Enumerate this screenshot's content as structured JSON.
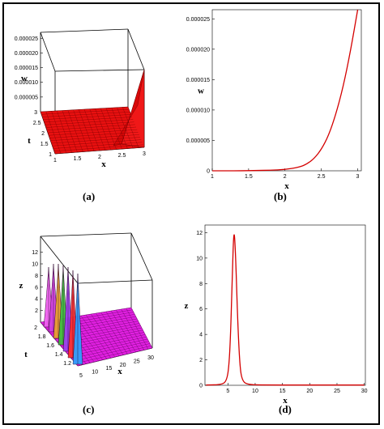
{
  "captions": {
    "a": "(a)",
    "b": "(b)",
    "c": "(c)",
    "d": "(d)"
  },
  "colors": {
    "curve": "#d40000",
    "surface_a": "#e81010",
    "surface_c": "#e020e0",
    "frame": "#000000"
  },
  "chart_data": [
    {
      "id": "a",
      "type": "surface3d",
      "caption": "(a)",
      "xlabel": "x",
      "ylabel": "t",
      "zlabel": "w",
      "x_ticks": [
        "1",
        "1.5",
        "2",
        "2.5",
        "3"
      ],
      "t_ticks": [
        "1",
        "1.5",
        "2",
        "2.5",
        "3"
      ],
      "z_ticks": [
        "0.000005",
        "0.000010",
        "0.000015",
        "0.000020",
        "0.000025"
      ],
      "xlim": [
        1,
        3
      ],
      "tlim": [
        1,
        3
      ],
      "zlim": [
        0,
        2.7e-05
      ]
    },
    {
      "id": "b",
      "type": "line",
      "caption": "(b)",
      "xlabel": "x",
      "ylabel": "w",
      "x_ticks": [
        "1",
        "1.5",
        "2",
        "2.5",
        "3"
      ],
      "y_ticks": [
        "0",
        "0.000005",
        "0.000010",
        "0.000015",
        "0.000020",
        "0.000025"
      ],
      "xlim": [
        1,
        3.05
      ],
      "ylim": [
        0,
        2.65e-05
      ],
      "x": [
        1.0,
        1.2,
        1.4,
        1.6,
        1.8,
        2.0,
        2.2,
        2.3,
        2.4,
        2.5,
        2.6,
        2.7,
        2.8,
        2.9,
        3.0
      ],
      "y": [
        0.0,
        0.0,
        0.0,
        5e-08,
        1e-07,
        2e-07,
        6e-07,
        1.1e-06,
        2e-06,
        3.5e-06,
        5.8e-06,
        9.3e-06,
        1.38e-05,
        1.96e-05,
        2.65e-05
      ]
    },
    {
      "id": "c",
      "type": "surface3d",
      "caption": "(c)",
      "xlabel": "x",
      "ylabel": "t",
      "zlabel": "z",
      "x_ticks": [
        "5",
        "10",
        "15",
        "20",
        "25",
        "30"
      ],
      "t_ticks": [
        "1.2",
        "1.4",
        "1.6",
        "1.8",
        "2"
      ],
      "z_ticks": [
        "2",
        "4",
        "6",
        "8",
        "10",
        "12"
      ],
      "xlim": [
        0,
        30
      ],
      "tlim": [
        1,
        2
      ],
      "zlim": [
        0,
        12.5
      ]
    },
    {
      "id": "d",
      "type": "line",
      "caption": "(d)",
      "xlabel": "x",
      "ylabel": "z",
      "x_ticks": [
        "5",
        "10",
        "15",
        "20",
        "25",
        "30"
      ],
      "y_ticks": [
        "0",
        "2",
        "4",
        "6",
        "8",
        "10",
        "12"
      ],
      "xlim": [
        0.8,
        30.2
      ],
      "ylim": [
        0,
        12.6
      ],
      "x": [
        1,
        4,
        4.8,
        5.2,
        5.5,
        5.8,
        6.1,
        6.4,
        6.8,
        7.2,
        7.6,
        8.5,
        12,
        30
      ],
      "y": [
        0.02,
        0.05,
        0.4,
        1.5,
        4.0,
        8.5,
        12.5,
        10.5,
        5.0,
        1.5,
        0.4,
        0.05,
        0.02,
        0.02
      ]
    }
  ]
}
